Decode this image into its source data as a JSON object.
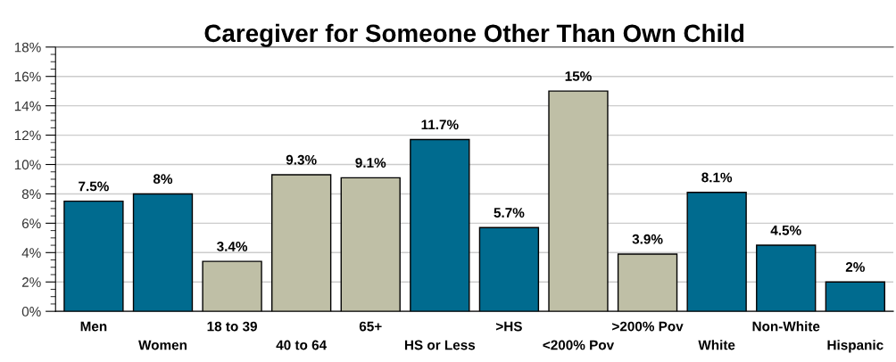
{
  "chart_data": {
    "type": "bar",
    "title": "Caregiver for Someone Other Than Own Child",
    "categories": [
      "Men",
      "Women",
      "18 to 39",
      "40 to 64",
      "65+",
      "HS or Less",
      ">HS",
      "<200% Pov",
      ">200% Pov",
      "White",
      "Non-White",
      "Hispanic"
    ],
    "values": [
      7.5,
      8,
      3.4,
      9.3,
      9.1,
      11.7,
      5.7,
      15,
      3.9,
      8.1,
      4.5,
      2
    ],
    "colors": [
      "#006b8f",
      "#006b8f",
      "#bfbfa6",
      "#bfbfa6",
      "#bfbfa6",
      "#006b8f",
      "#006b8f",
      "#bfbfa6",
      "#bfbfa6",
      "#006b8f",
      "#006b8f",
      "#006b8f"
    ],
    "value_labels": [
      "7.5%",
      "8%",
      "3.4%",
      "9.3%",
      "9.1%",
      "11.7%",
      "5.7%",
      "15%",
      "3.9%",
      "8.1%",
      "4.5%",
      "2%"
    ],
    "ylim": [
      0,
      18
    ],
    "yticks": [
      {
        "value": 0,
        "label": "0%"
      },
      {
        "value": 2,
        "label": "2%"
      },
      {
        "value": 4,
        "label": "4%"
      },
      {
        "value": 6,
        "label": "6%"
      },
      {
        "value": 8,
        "label": "8%"
      },
      {
        "value": 10,
        "label": "10%"
      },
      {
        "value": 12,
        "label": "12%"
      },
      {
        "value": 14,
        "label": "14%"
      },
      {
        "value": 16,
        "label": "16%"
      },
      {
        "value": 18,
        "label": "18%"
      }
    ],
    "grid": "y"
  }
}
